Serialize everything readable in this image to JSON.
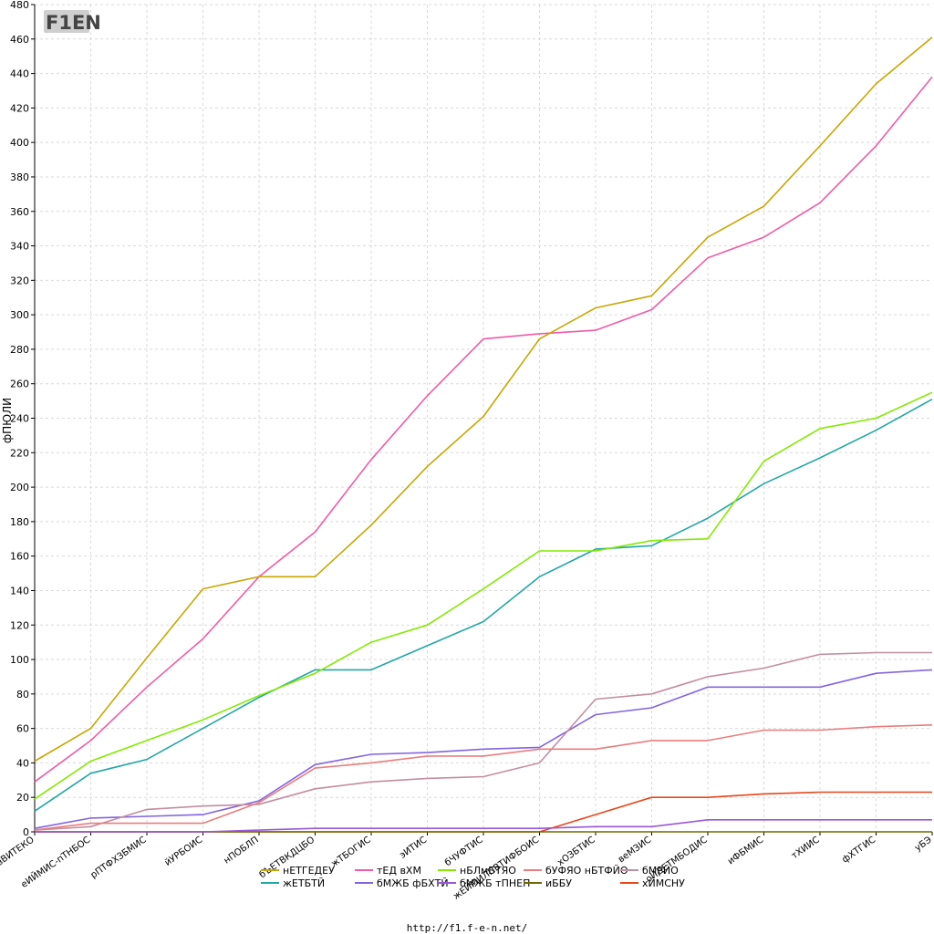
{
  "logo": {
    "text": "F1EN"
  },
  "footer": {
    "url": "http://f1.f-e-n.net/"
  },
  "chart_data": {
    "type": "line",
    "xlabel": "",
    "ylabel": "фПЮЛИ",
    "ylim": [
      0,
      480
    ],
    "yticks": [
      0,
      20,
      40,
      60,
      80,
      100,
      120,
      140,
      160,
      180,
      200,
      220,
      240,
      260,
      280,
      300,
      320,
      340,
      360,
      380,
      400,
      420,
      440,
      460,
      480
    ],
    "grid": true,
    "legend_placement": "bottom",
    "categories": [
      "вВИТЕКО",
      "еИЙМИС-пТНБОС",
      "рПТФХЗБМИС",
      "йУРБОИС",
      "нПОБЛП",
      "бЪЕТВКДЦБО",
      "жТБОГИС",
      "эИТИС",
      "бЧУФТИС",
      "жЕЙМИЛПВТИФБОИС",
      "хОЗБТИС",
      "веМЗИС",
      "оИДЕТМБОДИС",
      "иФБМИС",
      "тХИИС",
      "фХТГИС",
      "уБЭ"
    ],
    "series": [
      {
        "name": "нЕТГЕДЕУ",
        "color": "#c9a600",
        "values": [
          41,
          60,
          101,
          141,
          148,
          148,
          178,
          212,
          241,
          286,
          304,
          311,
          345,
          363,
          398,
          434,
          461
        ]
      },
      {
        "name": "тЕД вХМ",
        "color": "#f05aa6",
        "values": [
          29,
          53,
          84,
          112,
          148,
          174,
          216,
          253,
          286,
          289,
          291,
          303,
          333,
          345,
          365,
          398,
          438
        ]
      },
      {
        "name": "нБЛмБТЯО",
        "color": "#83ea00",
        "values": [
          19,
          41,
          53,
          65,
          79,
          92,
          110,
          120,
          141,
          163,
          163,
          169,
          170,
          215,
          234,
          240,
          255
        ]
      },
      {
        "name": "бУФЯО нБТФЙО",
        "color": "#ea7d7d",
        "values": [
          1,
          5,
          5,
          5,
          17,
          37,
          40,
          44,
          44,
          48,
          48,
          53,
          53,
          59,
          59,
          61,
          62
        ]
      },
      {
        "name": "бМРЙО",
        "color": "#c38da2",
        "values": [
          1,
          3,
          13,
          15,
          16,
          25,
          29,
          31,
          32,
          40,
          77,
          80,
          90,
          95,
          103,
          104,
          104
        ]
      },
      {
        "name": "жЕТБТЙ",
        "color": "#23a6a6",
        "values": [
          12,
          34,
          42,
          60,
          78,
          94,
          94,
          108,
          122,
          148,
          164,
          166,
          182,
          202,
          217,
          233,
          251
        ]
      },
      {
        "name": "бМЖБ фБХТЙ",
        "color": "#8364e0",
        "values": [
          2,
          8,
          9,
          10,
          18,
          39,
          45,
          46,
          48,
          49,
          68,
          72,
          84,
          84,
          84,
          92,
          94
        ]
      },
      {
        "name": "бМЖБ тПНЕП",
        "color": "#9a57d6",
        "values": [
          0,
          0,
          0,
          0,
          1,
          2,
          2,
          2,
          2,
          2,
          3,
          3,
          7,
          7,
          7,
          7,
          7
        ]
      },
      {
        "name": "иББУ",
        "color": "#6e6a00",
        "values": [
          0,
          0,
          0,
          0,
          0,
          0,
          0,
          0,
          0,
          0,
          0,
          0,
          0,
          0,
          0,
          0,
          0
        ]
      },
      {
        "name": "хЙМСНУ",
        "color": "#e8471c",
        "values": [
          0,
          0,
          0,
          0,
          0,
          0,
          0,
          0,
          0,
          0,
          10,
          20,
          20,
          22,
          23,
          23,
          23
        ]
      }
    ]
  }
}
